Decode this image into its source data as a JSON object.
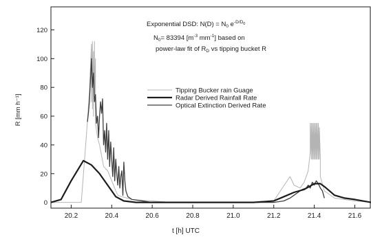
{
  "chart_data": {
    "type": "line",
    "annotation": {
      "line1": "Exponential DSD: N(D) = N",
      "line1_sub": "0",
      "line1_after": " e",
      "line1_sup": "-D/D",
      "line1_sup_sub": "0",
      "line2_a": "N",
      "line2_sub": "0",
      "line2_b": "= 83394 [m",
      "line2_sup1": "-3",
      "line2_c": " mm",
      "line2_sup2": "-1",
      "line2_d": "]  based on",
      "line3": "power-law fit of R",
      "line3_sub": "D",
      "line3_after": " vs tipping bucket R"
    },
    "xlabel": "t [h]  UTC",
    "ylabel": "R [mm h⁻¹]",
    "xlim": [
      20.1,
      21.68
    ],
    "ylim": [
      -4,
      136
    ],
    "xticks": [
      "20.2",
      "20.4",
      "20.6",
      "20.8",
      "21.0",
      "21.2",
      "21.4",
      "21.6"
    ],
    "yticks": [
      "0",
      "20",
      "40",
      "60",
      "80",
      "100",
      "120"
    ],
    "legend_position": "middle-right",
    "series": [
      {
        "name": "Tipping Bucker rain Guage",
        "color": "#b4b4b4",
        "width": 1,
        "x": [
          20.1,
          20.25,
          20.28,
          20.29,
          20.3,
          20.3,
          20.305,
          20.305,
          20.31,
          20.31,
          20.315,
          20.315,
          20.32,
          20.32,
          20.33,
          20.34,
          20.36,
          20.38,
          20.4,
          20.42,
          20.43,
          20.45,
          20.5,
          20.6,
          20.7,
          20.8,
          20.9,
          21.0,
          21.1,
          21.2,
          21.28,
          21.3,
          21.33,
          21.35,
          21.37,
          21.38,
          21.38,
          21.385,
          21.385,
          21.39,
          21.39,
          21.395,
          21.395,
          21.4,
          21.4,
          21.405,
          21.405,
          21.41,
          21.41,
          21.415,
          21.415,
          21.42,
          21.42,
          21.425,
          21.425,
          21.43,
          21.43,
          21.45,
          21.5,
          21.6,
          21.68
        ],
        "y": [
          0,
          0,
          56,
          78,
          110,
          70,
          112,
          65,
          105,
          60,
          112,
          75,
          100,
          55,
          45,
          40,
          25,
          22,
          15,
          8,
          5,
          4,
          2,
          1,
          0,
          0,
          0,
          0,
          0,
          1,
          18,
          12,
          10,
          14,
          22,
          35,
          55,
          30,
          55,
          30,
          55,
          30,
          55,
          30,
          55,
          30,
          55,
          30,
          55,
          30,
          55,
          30,
          55,
          30,
          52,
          30,
          18,
          8,
          3,
          1,
          0
        ]
      },
      {
        "name": "Radar Derived Rainfall Rate",
        "color": "#1c1c1c",
        "width": 2.2,
        "x": [
          20.1,
          20.15,
          20.2,
          20.26,
          20.3,
          20.34,
          20.38,
          20.42,
          20.46,
          20.52,
          20.6,
          20.7,
          20.8,
          20.9,
          21.0,
          21.1,
          21.2,
          21.25,
          21.3,
          21.35,
          21.4,
          21.43,
          21.45,
          21.5,
          21.55,
          21.6,
          21.68
        ],
        "y": [
          0,
          2,
          15,
          29,
          26,
          20,
          12,
          4,
          1,
          0,
          0,
          0,
          0,
          0,
          0,
          0,
          1,
          4,
          7,
          9,
          13,
          13,
          11,
          5,
          3,
          2,
          0
        ]
      },
      {
        "name": "Optical Extinction Derived Rate",
        "color": "#3c3c3c",
        "width": 1.3,
        "x": [
          20.28,
          20.285,
          20.29,
          20.295,
          20.3,
          20.305,
          20.31,
          20.315,
          20.32,
          20.325,
          20.33,
          20.335,
          20.34,
          20.345,
          20.35,
          20.355,
          20.36,
          20.365,
          20.37,
          20.375,
          20.38,
          20.385,
          20.39,
          20.395,
          20.4,
          20.405,
          20.41,
          20.415,
          20.42,
          20.425,
          20.43,
          20.435,
          20.44,
          20.445,
          20.45,
          20.455,
          20.46,
          20.465,
          20.47,
          20.48,
          20.5,
          20.55,
          20.6,
          20.7,
          20.8,
          20.9,
          21.0,
          21.1,
          21.2,
          21.25,
          21.28,
          21.3,
          21.32,
          21.34,
          21.36,
          21.37,
          21.38,
          21.39,
          21.4,
          21.41,
          21.42,
          21.43,
          21.44,
          21.45
        ],
        "y": [
          56,
          62,
          70,
          85,
          100,
          80,
          90,
          70,
          75,
          55,
          60,
          45,
          60,
          70,
          62,
          72,
          40,
          50,
          35,
          55,
          30,
          50,
          25,
          42,
          30,
          18,
          38,
          15,
          30,
          20,
          12,
          25,
          10,
          18,
          22,
          5,
          28,
          15,
          8,
          4,
          2,
          1,
          0,
          0,
          0,
          0,
          0,
          0,
          0,
          1,
          3,
          5,
          7,
          9,
          10,
          12,
          10,
          14,
          12,
          15,
          13,
          10,
          8,
          3
        ]
      }
    ]
  }
}
